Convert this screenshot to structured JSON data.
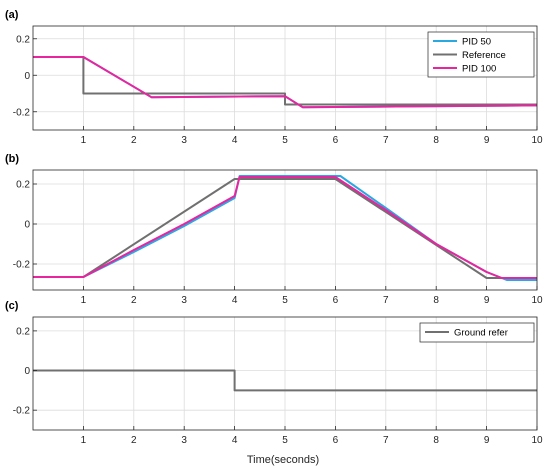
{
  "figure": {
    "xlabel": "Time(seconds)"
  },
  "colors": {
    "pid50": "#2aa8e0",
    "reference": "#707070",
    "pid100": "#e8259f",
    "grid": "#dcdcdc",
    "axis": "#262626"
  },
  "chart_data": [
    {
      "type": "line",
      "panel_label": "(a)",
      "xlim": [
        0,
        10
      ],
      "ylim": [
        -0.3,
        0.27
      ],
      "xticks": [
        1,
        2,
        3,
        4,
        5,
        6,
        7,
        8,
        9,
        10
      ],
      "yticks": [
        0.2,
        0,
        -0.2
      ],
      "ytick_labels": [
        "0.2",
        "0",
        "-0.2"
      ],
      "grid": true,
      "legend": "top-right",
      "series": [
        {
          "name": "PID 50",
          "color_key": "pid50",
          "x": [
            0,
            1,
            2.35,
            5,
            5.35,
            10
          ],
          "y": [
            0.1,
            0.1,
            -0.12,
            -0.115,
            -0.175,
            -0.165
          ]
        },
        {
          "name": "Reference",
          "color_key": "reference",
          "x": [
            0,
            1,
            1,
            5,
            5,
            10
          ],
          "y": [
            0.1,
            0.1,
            -0.1,
            -0.1,
            -0.16,
            -0.16
          ]
        },
        {
          "name": "PID 100",
          "color_key": "pid100",
          "x": [
            0,
            1,
            2.35,
            5,
            5.35,
            10
          ],
          "y": [
            0.1,
            0.1,
            -0.12,
            -0.115,
            -0.175,
            -0.165
          ]
        }
      ]
    },
    {
      "type": "line",
      "panel_label": "(b)",
      "xlim": [
        0,
        10
      ],
      "ylim": [
        -0.33,
        0.27
      ],
      "xticks": [
        1,
        2,
        3,
        4,
        5,
        6,
        7,
        8,
        9,
        10
      ],
      "yticks": [
        0.2,
        0,
        -0.2
      ],
      "ytick_labels": [
        "0.2",
        "0",
        "-0.2"
      ],
      "grid": true,
      "series": [
        {
          "name": "PID 50",
          "color_key": "pid50",
          "x": [
            0,
            1,
            2,
            3,
            4,
            4.1,
            6.1,
            7,
            8,
            9,
            9.4,
            10
          ],
          "y": [
            -0.265,
            -0.265,
            -0.14,
            -0.01,
            0.13,
            0.24,
            0.24,
            0.08,
            -0.1,
            -0.24,
            -0.28,
            -0.28
          ]
        },
        {
          "name": "Reference",
          "color_key": "reference",
          "x": [
            0,
            1,
            4,
            6,
            9,
            10
          ],
          "y": [
            -0.265,
            -0.265,
            0.225,
            0.225,
            -0.27,
            -0.27
          ]
        },
        {
          "name": "PID 100",
          "color_key": "pid100",
          "x": [
            0,
            1,
            2,
            3,
            4,
            4.1,
            6,
            7,
            8,
            9,
            9.3,
            10
          ],
          "y": [
            -0.265,
            -0.265,
            -0.13,
            0,
            0.14,
            0.235,
            0.235,
            0.07,
            -0.1,
            -0.24,
            -0.27,
            -0.27
          ]
        }
      ]
    },
    {
      "type": "line",
      "panel_label": "(c)",
      "xlim": [
        0,
        10
      ],
      "ylim": [
        -0.3,
        0.27
      ],
      "xticks": [
        1,
        2,
        3,
        4,
        5,
        6,
        7,
        8,
        9,
        10
      ],
      "yticks": [
        0.2,
        0,
        -0.2
      ],
      "ytick_labels": [
        "0.2",
        "0",
        "-0.2"
      ],
      "grid": true,
      "legend": "top-right",
      "series": [
        {
          "name": "Ground refer",
          "color_key": "reference",
          "x": [
            0,
            4,
            4,
            10
          ],
          "y": [
            0,
            0,
            -0.1,
            -0.1
          ]
        }
      ]
    }
  ]
}
